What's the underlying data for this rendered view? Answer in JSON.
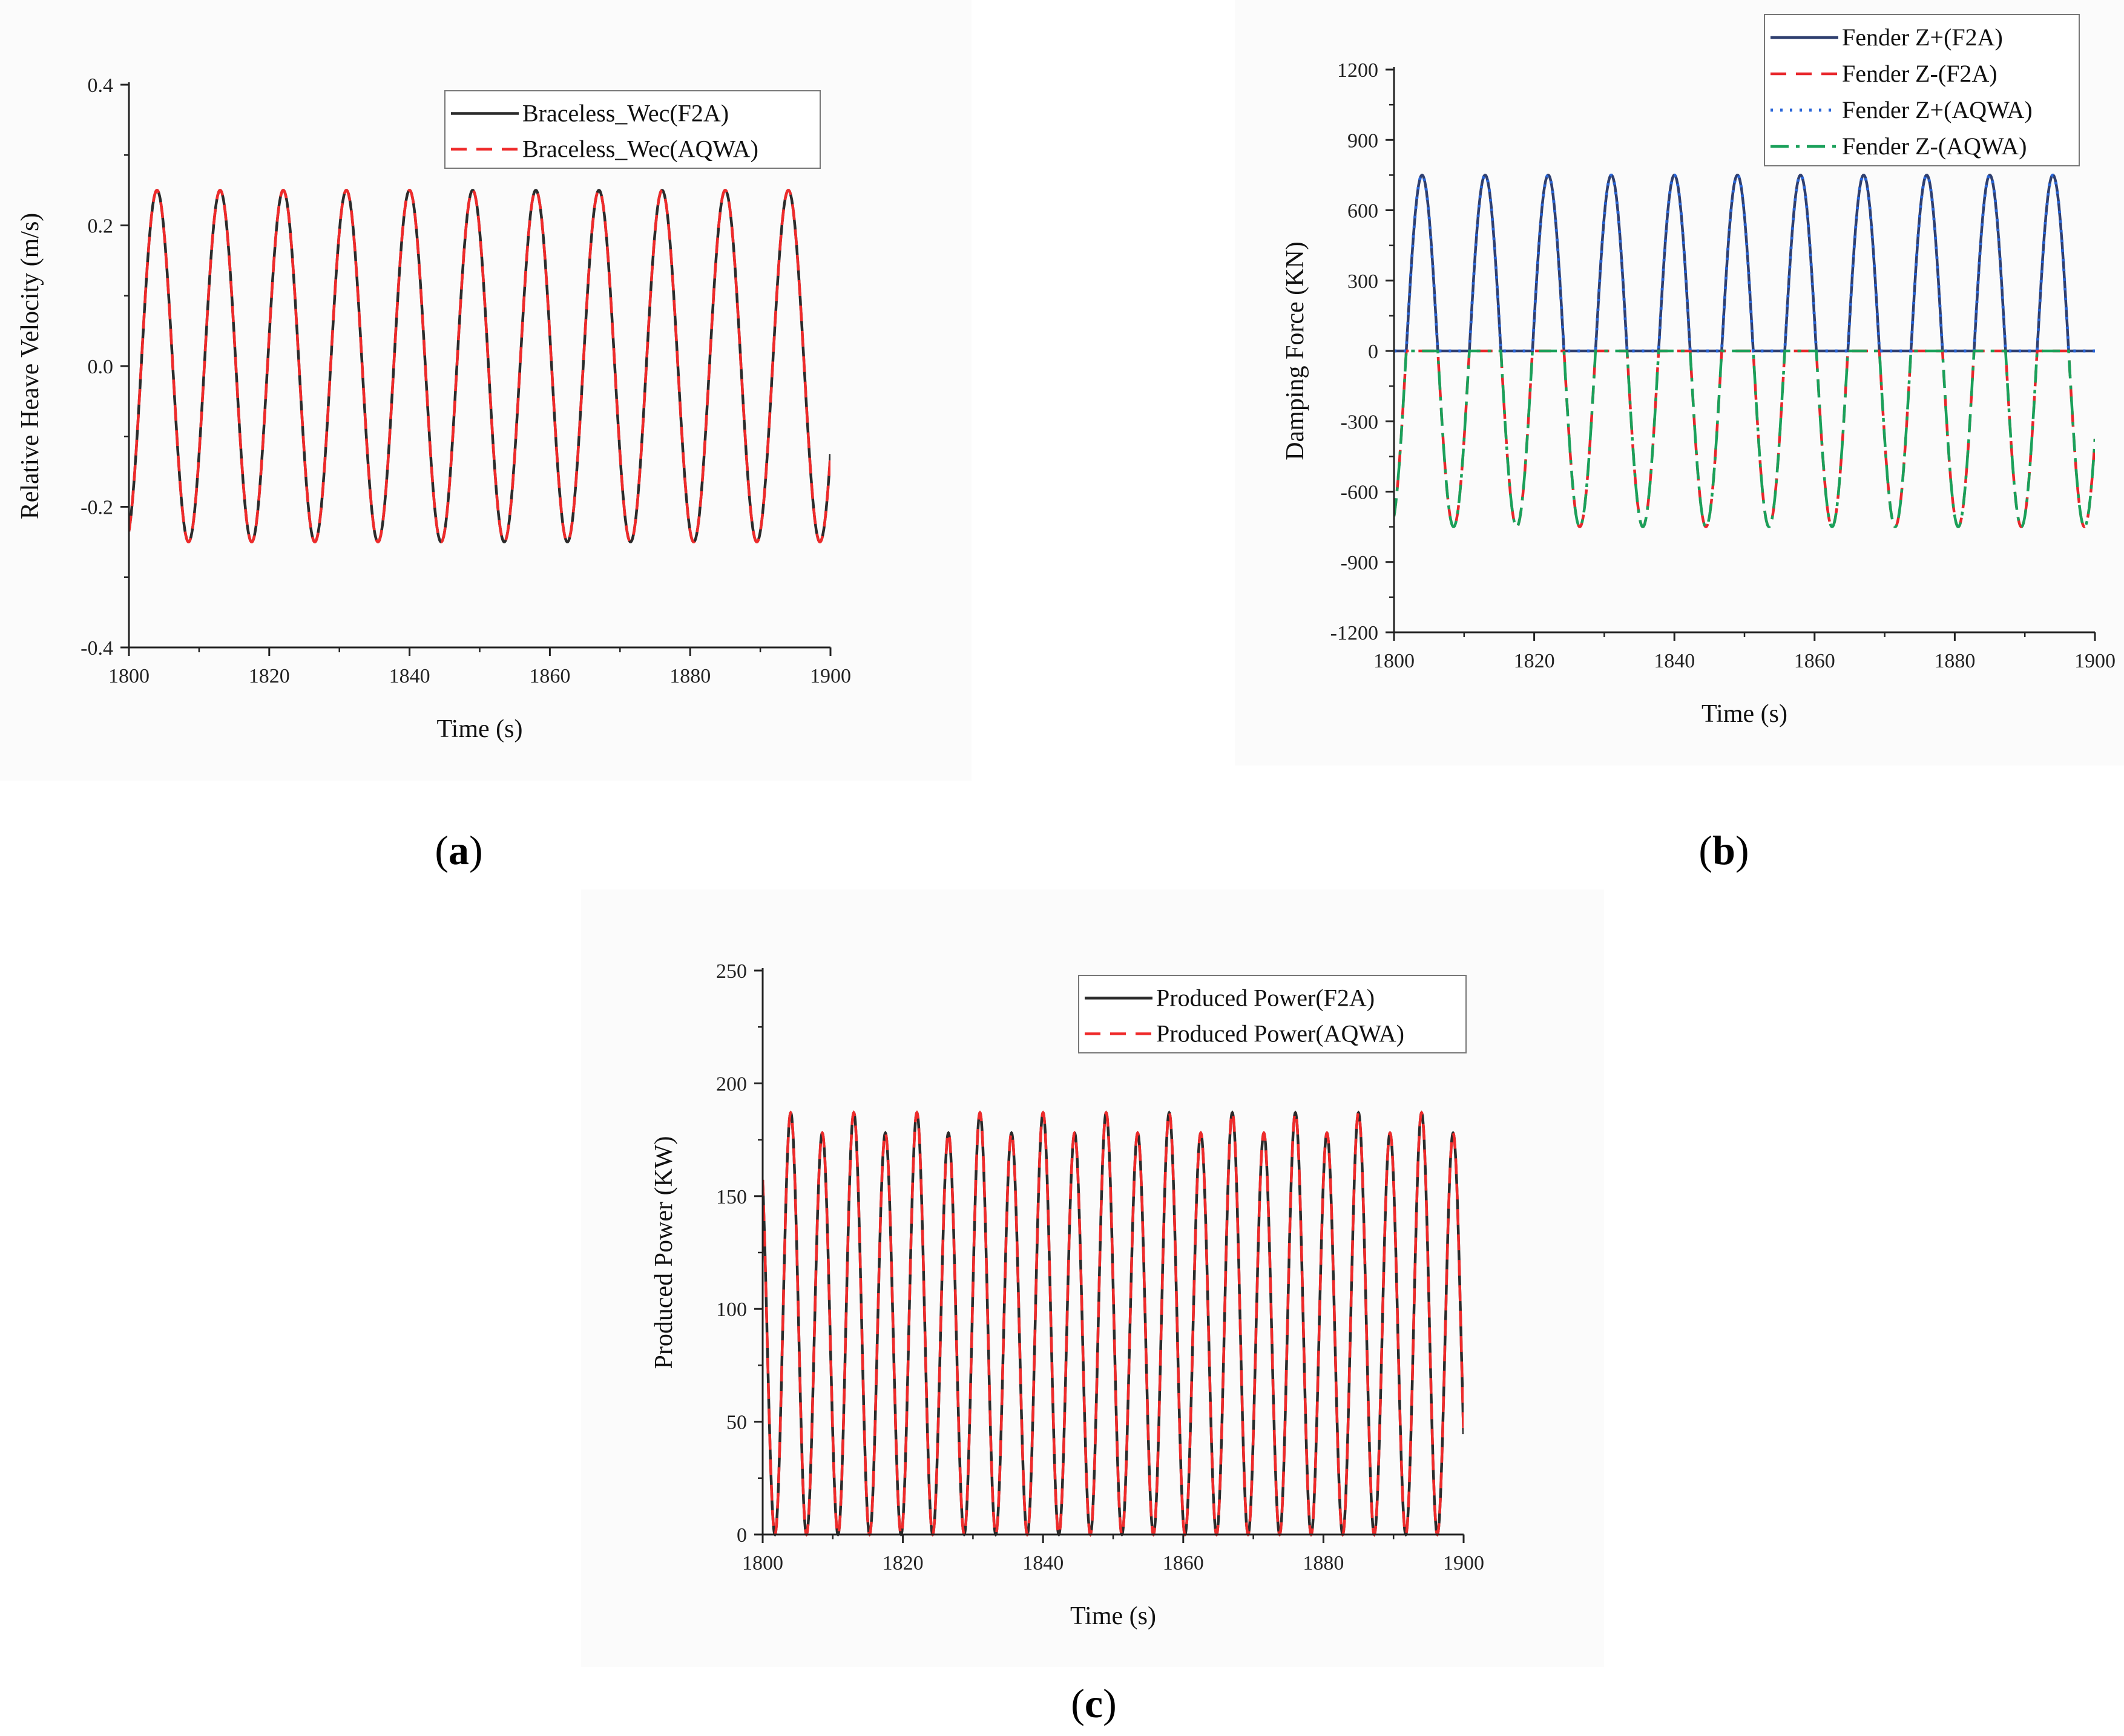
{
  "colors": {
    "f2a": "#2b2b2b",
    "aqwa": "#ef2b2b",
    "fz_plus_f2a": "#2f3f6f",
    "fz_minus_f2a": "#e8262b",
    "fz_plus_aqwa": "#2a66d9",
    "fz_minus_aqwa": "#1aa05a"
  },
  "panels": {
    "a": {
      "label_open": "(",
      "label_letter": "a",
      "label_close": ")"
    },
    "b": {
      "label_open": "(",
      "label_letter": "b",
      "label_close": ")"
    },
    "c": {
      "label_open": "(",
      "label_letter": "c",
      "label_close": ")"
    }
  },
  "chart_data": [
    {
      "id": "a",
      "type": "line",
      "xlabel": "Time (s)",
      "ylabel": "Relative Heave Velocity (m/s)",
      "xlim": [
        1800,
        1900
      ],
      "ylim": [
        -0.4,
        0.4
      ],
      "xticks": [
        1800,
        1820,
        1840,
        1860,
        1880,
        1900
      ],
      "xtick_labels": [
        "1800",
        "1820",
        "1840",
        "1860",
        "1880",
        "1900"
      ],
      "yticks": [
        -0.4,
        -0.2,
        0.0,
        0.2,
        0.4
      ],
      "ytick_labels": [
        "-0.4",
        "-0.2",
        "0.0",
        "0.2",
        "0.4"
      ],
      "legend_position": "top-right",
      "waveform": {
        "kind": "sine",
        "amplitude": 0.25,
        "offset": 0.0,
        "period": 9.0,
        "peak_time": 1804
      },
      "series": [
        {
          "name": "Braceless_Wec(F2A)",
          "style": "solid",
          "color_key": "f2a"
        },
        {
          "name": "Braceless_Wec(AQWA)",
          "style": "dashed",
          "color_key": "aqwa"
        }
      ]
    },
    {
      "id": "b",
      "type": "line",
      "xlabel": "Time (s)",
      "ylabel": "Damping Force (KN)",
      "xlim": [
        1800,
        1900
      ],
      "ylim": [
        -1200,
        1200
      ],
      "xticks": [
        1800,
        1820,
        1840,
        1860,
        1880,
        1900
      ],
      "xtick_labels": [
        "1800",
        "1820",
        "1840",
        "1860",
        "1880",
        "1900"
      ],
      "yticks": [
        -1200,
        -900,
        -600,
        -300,
        0,
        300,
        600,
        900,
        1200
      ],
      "ytick_labels": [
        "-1200",
        "-900",
        "-600",
        "-300",
        "0",
        "300",
        "600",
        "900",
        "1200"
      ],
      "legend_position": "top-right",
      "waveform": {
        "kind": "half-rectified sine",
        "peak": 750,
        "period": 9.0,
        "peak_time": 1804
      },
      "series": [
        {
          "name": "Fender Z+(F2A)",
          "style": "solid",
          "color_key": "fz_plus_f2a",
          "sign": 1
        },
        {
          "name": "Fender Z-(F2A)",
          "style": "dashed",
          "color_key": "fz_minus_f2a",
          "sign": -1
        },
        {
          "name": "Fender Z+(AQWA)",
          "style": "dotted",
          "color_key": "fz_plus_aqwa",
          "sign": 1
        },
        {
          "name": "Fender Z-(AQWA)",
          "style": "dashdot",
          "color_key": "fz_minus_aqwa",
          "sign": -1
        }
      ]
    },
    {
      "id": "c",
      "type": "line",
      "xlabel": "Time (s)",
      "ylabel": "Produced Power (KW)",
      "xlim": [
        1800,
        1900
      ],
      "ylim": [
        0,
        250
      ],
      "xticks": [
        1800,
        1820,
        1840,
        1860,
        1880,
        1900
      ],
      "xtick_labels": [
        "1800",
        "1820",
        "1840",
        "1860",
        "1880",
        "1900"
      ],
      "yticks": [
        0,
        50,
        100,
        150,
        200,
        250
      ],
      "ytick_labels": [
        "0",
        "50",
        "100",
        "150",
        "200",
        "250"
      ],
      "legend_position": "top-right",
      "waveform": {
        "kind": "squared sine",
        "peaks": [
          187,
          178
        ],
        "period": 4.5,
        "peak_time": 1804
      },
      "series": [
        {
          "name": "Produced Power(F2A)",
          "style": "solid",
          "color_key": "f2a"
        },
        {
          "name": "Produced Power(AQWA)",
          "style": "dashed",
          "color_key": "aqwa"
        }
      ]
    }
  ]
}
